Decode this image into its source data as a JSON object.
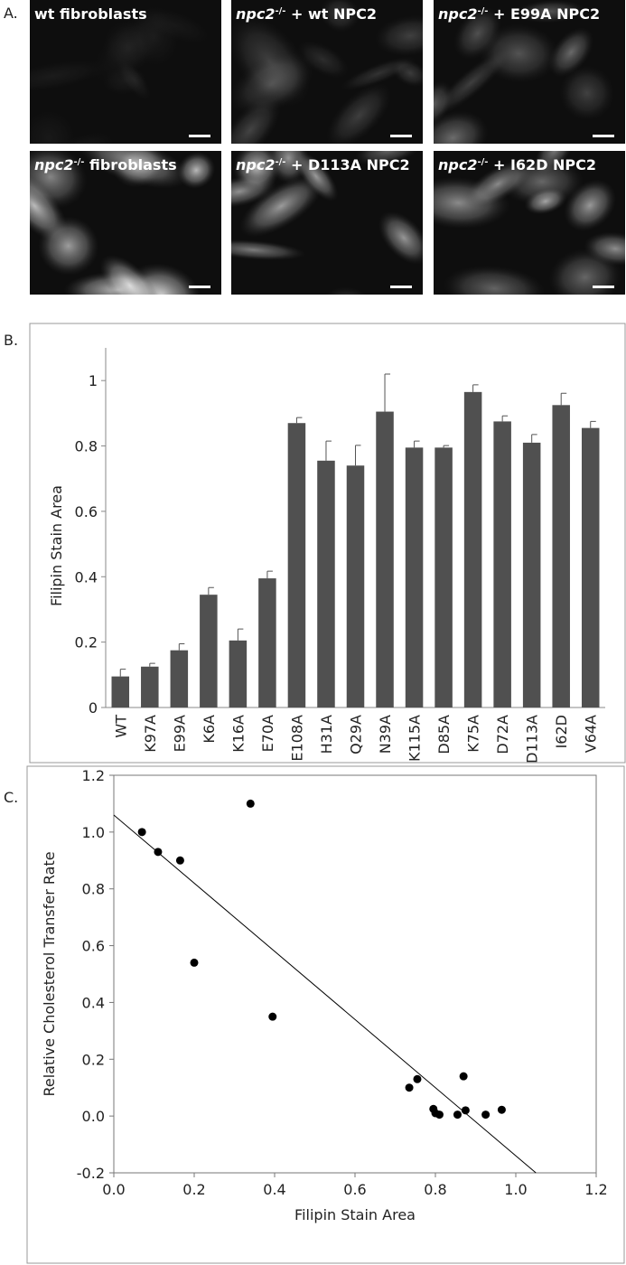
{
  "panel_labels": {
    "a": "A.",
    "b": "B.",
    "c": "C."
  },
  "micrographs": [
    {
      "text": "wt fibroblasts"
    },
    {
      "gene": "npc2",
      "superscript": "-/-",
      "text": " + wt NPC2"
    },
    {
      "gene": "npc2",
      "superscript": "-/-",
      "text": " + E99A NPC2"
    },
    {
      "gene": "npc2",
      "superscript": "-/-",
      "text": " fibroblasts"
    },
    {
      "gene": "npc2",
      "superscript": "-/-",
      "text": " + D113A NPC2"
    },
    {
      "gene": "npc2",
      "superscript": "-/-",
      "text": " + I62D NPC2"
    }
  ],
  "chart_data": [
    {
      "type": "bar",
      "y_label": "Filipin Stain Area",
      "color": "#505050",
      "categories": [
        "WT",
        "K97A",
        "E99A",
        "K6A",
        "K16A",
        "E70A",
        "E108A",
        "H31A",
        "Q29A",
        "N39A",
        "K115A",
        "D85A",
        "K75A",
        "D72A",
        "D113A",
        "I62D",
        "V64A"
      ],
      "values": [
        0.095,
        0.125,
        0.175,
        0.345,
        0.205,
        0.395,
        0.87,
        0.755,
        0.74,
        0.905,
        0.795,
        0.795,
        0.965,
        0.875,
        0.81,
        0.925,
        0.855
      ],
      "errors": [
        0.022,
        0.01,
        0.02,
        0.022,
        0.035,
        0.022,
        0.017,
        0.06,
        0.062,
        0.115,
        0.02,
        0.006,
        0.022,
        0.017,
        0.025,
        0.036,
        0.02
      ],
      "ylim": [
        0,
        1.1
      ],
      "yticks": [
        0,
        0.2,
        0.4,
        0.6,
        0.8,
        1
      ]
    },
    {
      "type": "scatter",
      "x_label": "Filipin Stain Area",
      "y_label": "Relative Cholesterol Transfer Rate",
      "color": "#000000",
      "x": [
        0.07,
        0.11,
        0.165,
        0.2,
        0.34,
        0.395,
        0.735,
        0.755,
        0.795,
        0.8,
        0.81,
        0.855,
        0.87,
        0.875,
        0.925,
        0.965
      ],
      "values": [
        1.0,
        0.93,
        0.9,
        0.54,
        1.1,
        0.35,
        0.1,
        0.13,
        0.025,
        0.01,
        0.005,
        0.005,
        0.14,
        0.02,
        0.005,
        0.022
      ],
      "fit": {
        "x": [
          0,
          1.05
        ],
        "y": [
          1.06,
          -0.2
        ]
      },
      "xlim": [
        0,
        1.2
      ],
      "xticks": [
        {
          "value": 0,
          "label": "0.0"
        },
        0.2,
        0.4,
        0.6,
        0.8,
        {
          "value": 1,
          "label": "1.0"
        },
        1.2
      ],
      "ylim": [
        -0.2,
        1.2
      ],
      "yticks": [
        -0.2,
        {
          "value": 0,
          "label": "0.0"
        },
        0.2,
        0.4,
        0.6,
        0.8,
        {
          "value": 1,
          "label": "1.0"
        },
        1.2
      ]
    }
  ]
}
